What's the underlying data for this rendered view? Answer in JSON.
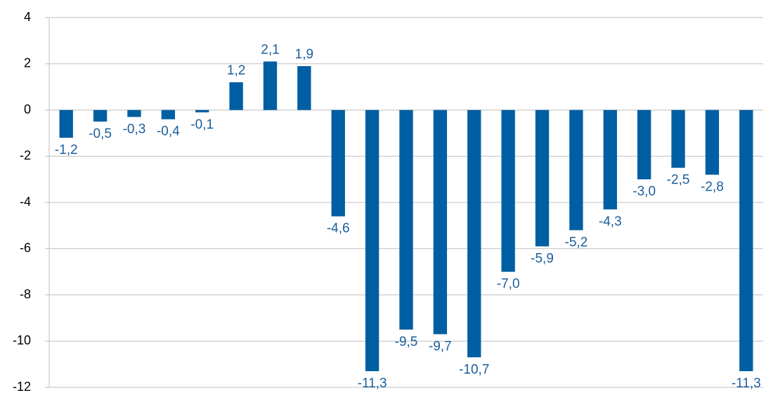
{
  "chart_data": {
    "type": "bar",
    "categories": [
      null,
      null,
      null,
      null,
      null,
      null,
      null,
      null,
      null,
      null,
      null,
      null,
      null,
      null,
      null,
      null,
      null,
      null,
      null,
      null,
      null
    ],
    "values": [
      -1.2,
      -0.5,
      -0.3,
      -0.4,
      -0.1,
      1.2,
      2.1,
      1.9,
      -4.6,
      -11.3,
      -9.5,
      -9.7,
      -10.7,
      -7.0,
      -5.9,
      -5.2,
      -4.3,
      -3.0,
      -2.5,
      -2.8,
      -11.3
    ],
    "value_labels": [
      "-1,2",
      "-0,5",
      "-0,3",
      "-0,4",
      "-0,1",
      "1,2",
      "2,1",
      "1,9",
      "-4,6",
      "-11,3",
      "-9,5",
      "-9,7",
      "-10,7",
      "-7,0",
      "-5,9",
      "-5,2",
      "-4,3",
      "-3,0",
      "-2,5",
      "-2,8",
      "-11,3"
    ],
    "color": "#005ea2",
    "ylim": [
      -12,
      4
    ],
    "yticks": [
      -12,
      -10,
      -8,
      -6,
      -4,
      -2,
      0,
      2,
      4
    ],
    "grid": true
  }
}
